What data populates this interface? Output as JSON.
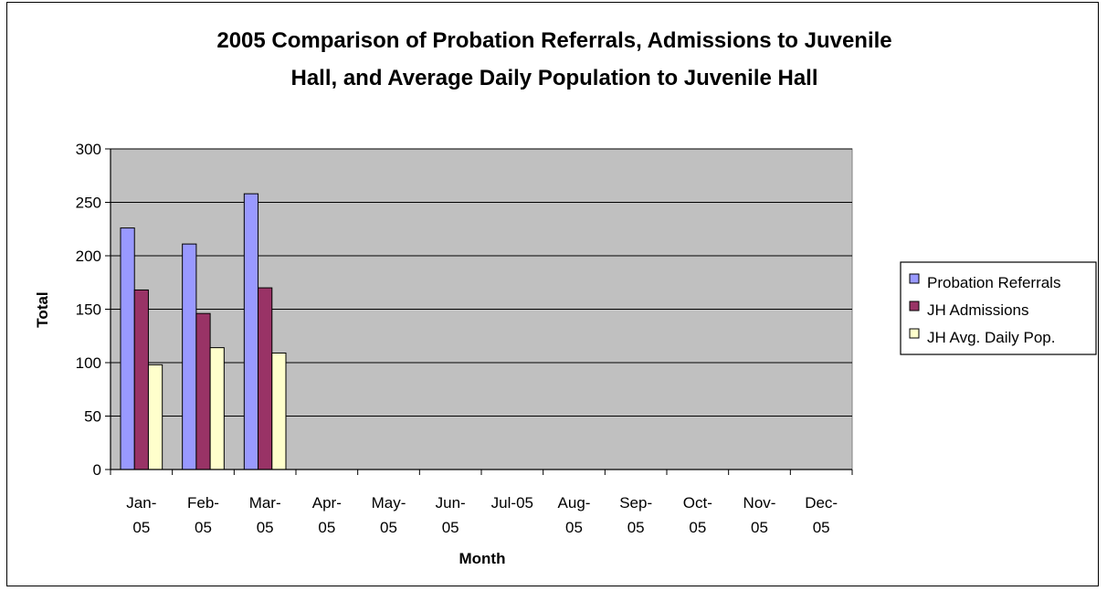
{
  "chart_data": {
    "type": "bar",
    "title_lines": [
      "2005 Comparison of Probation Referrals, Admissions to Juvenile",
      "Hall, and Average Daily Population to Juvenile Hall"
    ],
    "xlabel": "Month",
    "ylabel": "Total",
    "ylim": [
      0,
      300
    ],
    "yticks": [
      "0",
      "50",
      "100",
      "150",
      "200",
      "250",
      "300"
    ],
    "categories": [
      [
        "Jan-",
        "05"
      ],
      [
        "Feb-",
        "05"
      ],
      [
        "Mar-",
        "05"
      ],
      [
        "Apr-",
        "05"
      ],
      [
        "May-",
        "05"
      ],
      [
        "Jun-",
        "05"
      ],
      [
        "Jul-05"
      ],
      [
        "Aug-",
        "05"
      ],
      [
        "Sep-",
        "05"
      ],
      [
        "Oct-",
        "05"
      ],
      [
        "Nov-",
        "05"
      ],
      [
        "Dec-",
        "05"
      ]
    ],
    "series": [
      {
        "name": "Probation Referrals",
        "color": "#9999ff",
        "values": [
          226,
          211,
          258,
          null,
          null,
          null,
          null,
          null,
          null,
          null,
          null,
          null
        ]
      },
      {
        "name": "JH Admissions",
        "color": "#993366",
        "values": [
          168,
          146,
          170,
          null,
          null,
          null,
          null,
          null,
          null,
          null,
          null,
          null
        ]
      },
      {
        "name": "JH Avg. Daily Pop.",
        "color": "#ffffcc",
        "values": [
          98,
          114,
          109,
          null,
          null,
          null,
          null,
          null,
          null,
          null,
          null,
          null
        ]
      }
    ],
    "plot_background": "#c0c0c0",
    "grid": true,
    "legend_position": "right"
  }
}
